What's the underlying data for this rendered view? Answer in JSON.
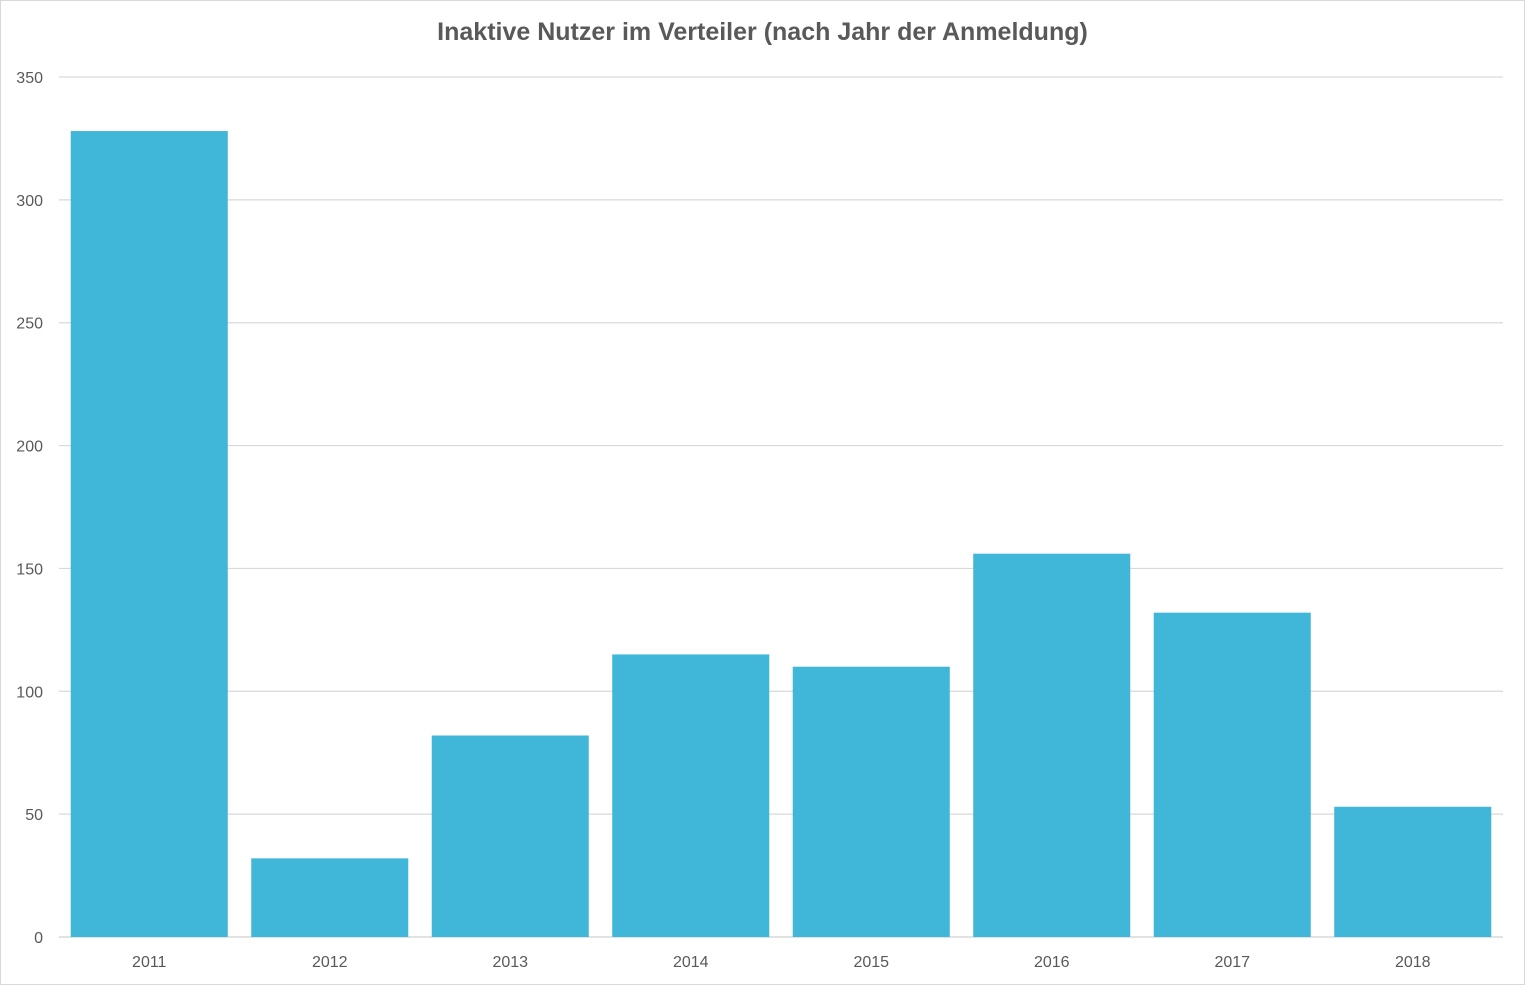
{
  "chart_data": {
    "type": "bar",
    "title": "Inaktive Nutzer im Verteiler (nach Jahr der Anmeldung)",
    "xlabel": "",
    "ylabel": "",
    "categories": [
      "2011",
      "2012",
      "2013",
      "2014",
      "2015",
      "2016",
      "2017",
      "2018"
    ],
    "values": [
      328,
      32,
      82,
      115,
      110,
      156,
      132,
      53
    ],
    "ylim": [
      0,
      350
    ],
    "yticks": [
      0,
      50,
      100,
      150,
      200,
      250,
      300,
      350
    ],
    "grid": true,
    "legend": "none",
    "bar_color": "#40B6D9",
    "grid_color": "#d9d9d9",
    "text_color": "#595959"
  }
}
